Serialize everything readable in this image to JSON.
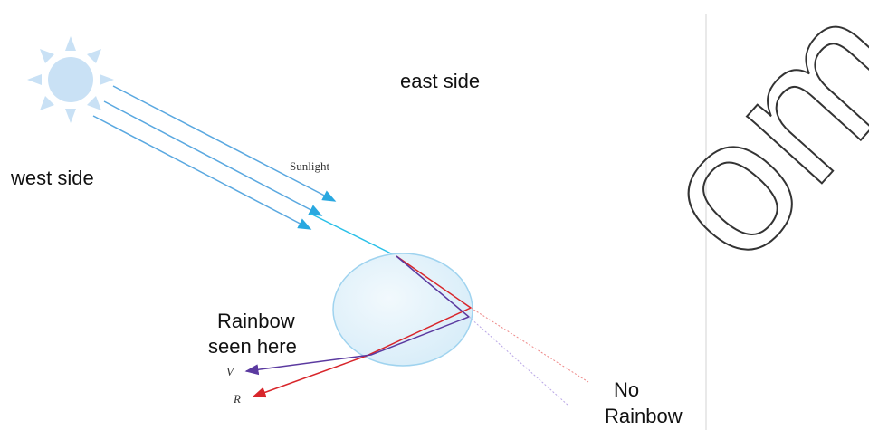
{
  "labels": {
    "east": "east side",
    "west": "west side",
    "sunlight": "Sunlight",
    "rainbow_seen": [
      "Rainbow",
      "seen here"
    ],
    "violet": "V",
    "red": "R",
    "no_rainbow": [
      "No",
      "Rainbow"
    ]
  },
  "watermark": "om"
}
